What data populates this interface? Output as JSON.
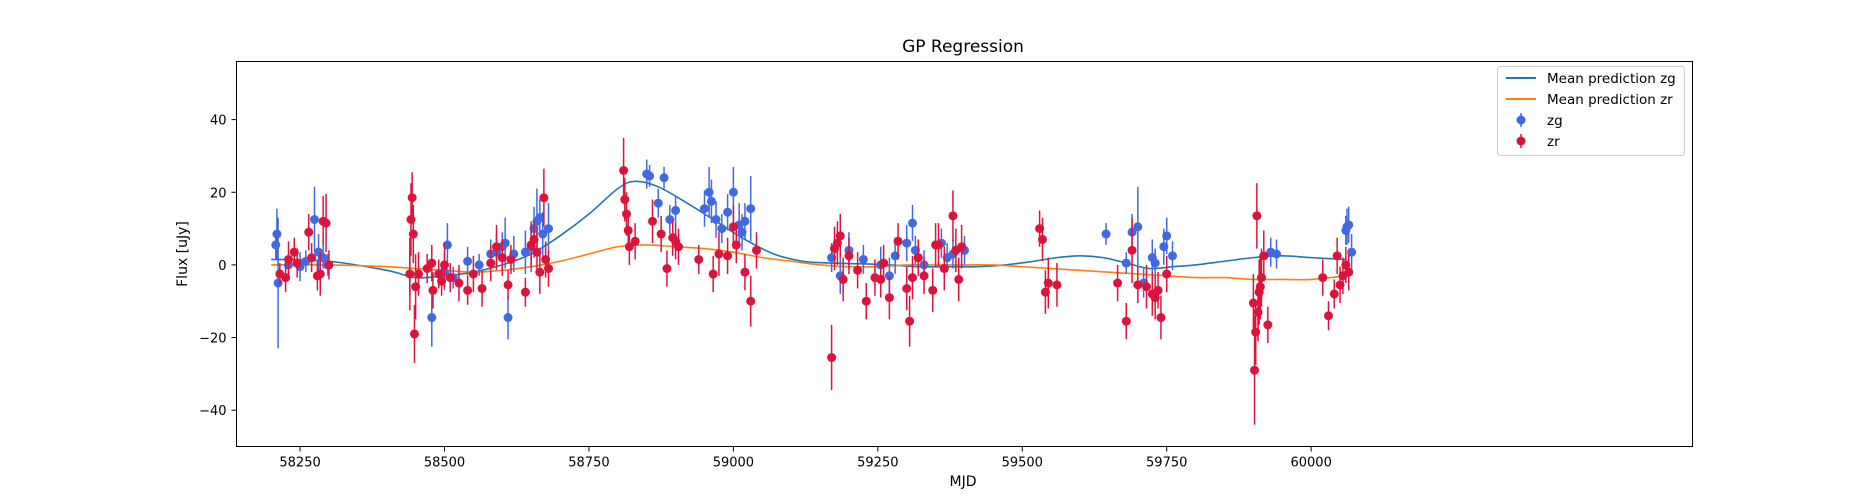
{
  "chart_data": {
    "type": "scatter",
    "title": "GP Regression",
    "xlabel": "MJD",
    "ylabel": "Flux [uJy]",
    "xlim": [
      58140,
      60660
    ],
    "ylim": [
      -50,
      56
    ],
    "xticks": [
      58250,
      58500,
      58750,
      59000,
      59250,
      59500,
      59750,
      60000
    ],
    "yticks": [
      -40,
      -20,
      0,
      20,
      40
    ],
    "grid": false,
    "legend_position": "top-right",
    "colors": {
      "zg_line": "#1f77b4",
      "zr_line": "#ff7f0e",
      "zg_points": "#4169e1",
      "zr_points": "#dc143c"
    },
    "lines": [
      {
        "name": "Mean prediction zg",
        "color": "#1f77b4",
        "x": [
          58200,
          58300,
          58400,
          58450,
          58500,
          58550,
          58600,
          58650,
          58700,
          58750,
          58800,
          58830,
          58870,
          58920,
          58970,
          59020,
          59070,
          59120,
          59170,
          59220,
          59270,
          59320,
          59370,
          59420,
          59470,
          59520,
          59560,
          59600,
          59640,
          59680,
          59720,
          59760,
          59800,
          59850,
          59900,
          59950,
          60000,
          60060
        ],
        "y": [
          1.5,
          1,
          -1.5,
          -3.5,
          -3,
          -2,
          0,
          3,
          8,
          14,
          21,
          23,
          21.5,
          17,
          12,
          7,
          3,
          1,
          0.5,
          0.3,
          0,
          -0.5,
          -0.5,
          -0.5,
          0,
          1,
          2,
          2.5,
          2,
          0.5,
          -1,
          -0.5,
          0,
          1,
          2,
          2.5,
          2,
          1.5
        ]
      },
      {
        "name": "Mean prediction zr",
        "color": "#ff7f0e",
        "x": [
          58200,
          58300,
          58400,
          58450,
          58500,
          58550,
          58600,
          58650,
          58700,
          58750,
          58800,
          58850,
          58900,
          58950,
          59000,
          59050,
          59100,
          59150,
          59200,
          59250,
          59300,
          59350,
          59400,
          59450,
          59500,
          59550,
          59600,
          59650,
          59700,
          59750,
          59800,
          59850,
          59900,
          59950,
          60000,
          60060
        ],
        "y": [
          0,
          0,
          -0.5,
          -1,
          -1.5,
          -2,
          -1.5,
          -0.5,
          1,
          3,
          5,
          5.5,
          5,
          4.5,
          3.5,
          2,
          1,
          0,
          -0.5,
          -0.5,
          0,
          0,
          0,
          0,
          -0.5,
          -1,
          -1.5,
          -2,
          -2.5,
          -3,
          -3.5,
          -3.5,
          -4,
          -4,
          -4,
          -3
        ]
      }
    ],
    "series": [
      {
        "name": "zg",
        "color": "#4169e1",
        "x": [
          58208,
          58210,
          58212,
          58230,
          58250,
          58260,
          58275,
          58282,
          58290,
          58298,
          58440,
          58478,
          58500,
          58505,
          58515,
          58540,
          58560,
          58580,
          58590,
          58600,
          58605,
          58610,
          58620,
          58640,
          58650,
          58655,
          58660,
          58665,
          58670,
          58680,
          58850,
          58855,
          58870,
          58880,
          58890,
          58900,
          58950,
          58958,
          58962,
          58970,
          58980,
          58990,
          59000,
          59010,
          59015,
          59020,
          59030,
          59170,
          59185,
          59200,
          59225,
          59255,
          59270,
          59280,
          59300,
          59310,
          59315,
          59320,
          59330,
          59360,
          59370,
          59380,
          59400,
          59645,
          59680,
          59690,
          59700,
          59710,
          59725,
          59730,
          59745,
          59750,
          59760,
          59930,
          59940,
          60060,
          60062,
          60065,
          60070
        ],
        "y": [
          5.5,
          8.5,
          -5,
          0,
          -0.5,
          1,
          12.5,
          3.5,
          2,
          0,
          -2.5,
          -14.5,
          -2,
          5.5,
          -3.5,
          1,
          0,
          3,
          3.5,
          5,
          6,
          -14.5,
          3,
          3.5,
          5,
          10,
          12,
          13,
          8.5,
          10,
          25,
          24.5,
          17,
          24,
          12.5,
          15,
          15.5,
          20,
          17.5,
          12.5,
          10,
          14.5,
          20,
          11,
          9,
          12,
          15.5,
          2,
          -3,
          4,
          1.5,
          0,
          -3,
          2.5,
          6,
          11.5,
          4,
          2,
          0,
          6,
          2,
          3,
          4,
          8.5,
          0.5,
          9,
          10.5,
          -5,
          2,
          0.5,
          5,
          8,
          2.5,
          3.5,
          3,
          9.5,
          10.5,
          11,
          3.5
        ],
        "err": [
          4,
          7,
          18,
          3,
          4,
          3,
          9,
          5,
          3,
          3,
          6,
          8,
          5,
          6,
          3,
          4,
          3,
          4,
          5,
          4,
          7,
          6,
          5,
          6,
          7,
          6,
          9,
          5,
          6,
          7,
          4,
          3,
          4,
          3,
          4,
          4,
          5,
          7,
          6,
          5,
          4,
          5,
          7,
          6,
          5,
          5,
          9,
          4,
          5,
          5,
          4,
          5,
          5,
          5,
          5,
          5,
          4,
          5,
          4,
          4,
          4,
          4,
          4,
          3,
          3,
          5,
          11,
          4,
          5,
          4,
          5,
          5,
          4,
          4,
          4,
          4,
          5,
          5,
          5
        ]
      },
      {
        "name": "zr",
        "color": "#dc143c",
        "x": [
          58215,
          58225,
          58230,
          58240,
          58245,
          58265,
          58270,
          58280,
          58285,
          58290,
          58295,
          58300,
          58440,
          58442,
          58444,
          58446,
          58448,
          58450,
          58455,
          58470,
          58478,
          58480,
          58490,
          58495,
          58500,
          58510,
          58525,
          58540,
          58550,
          58565,
          58580,
          58590,
          58600,
          58610,
          58615,
          58640,
          58650,
          58655,
          58660,
          58665,
          58672,
          58675,
          58680,
          58810,
          58812,
          58815,
          58818,
          58820,
          58830,
          58860,
          58875,
          58885,
          58895,
          58900,
          58905,
          58940,
          58965,
          58975,
          58990,
          59000,
          59005,
          59020,
          59030,
          59040,
          59170,
          59175,
          59180,
          59185,
          59190,
          59200,
          59215,
          59230,
          59245,
          59255,
          59260,
          59270,
          59285,
          59300,
          59305,
          59310,
          59320,
          59330,
          59345,
          59350,
          59355,
          59365,
          59380,
          59385,
          59390,
          59395,
          59530,
          59535,
          59540,
          59545,
          59560,
          59665,
          59680,
          59690,
          59700,
          59715,
          59725,
          59730,
          59735,
          59740,
          59750,
          59900,
          59902,
          59904,
          59906,
          59908,
          59910,
          59912,
          59914,
          59918,
          59925,
          60020,
          60030,
          60040,
          60045,
          60050,
          60055,
          60060,
          60065
        ],
        "y": [
          -2.5,
          -3.5,
          1.5,
          3.5,
          0.5,
          9,
          2,
          -3,
          -2.5,
          12,
          11.5,
          0,
          -2.5,
          12.5,
          18.5,
          8.5,
          -19,
          -6,
          -2.5,
          -1,
          0.5,
          -7,
          -2.5,
          -4.5,
          0,
          -3.5,
          -5,
          -7,
          -2.5,
          -6.5,
          0.5,
          5,
          2,
          -5.5,
          1.5,
          -7.5,
          5.5,
          7,
          3.5,
          -2,
          18.5,
          1.5,
          -1,
          26,
          18,
          14,
          9.5,
          5,
          6.5,
          12,
          8.5,
          -1,
          7.5,
          6.5,
          5,
          1.5,
          -2.5,
          3,
          2.5,
          10.5,
          5.5,
          -2,
          -10,
          4,
          -25.5,
          4.5,
          6,
          8,
          -4,
          2.5,
          -1.5,
          -10,
          -3.5,
          -4,
          0.5,
          -9,
          6.5,
          -6.5,
          -15.5,
          -3.5,
          2,
          -3,
          -7,
          5.5,
          5.5,
          -1,
          13.5,
          4,
          -4,
          5,
          10,
          7,
          -7.5,
          -5,
          -5.5,
          -5,
          -15.5,
          4,
          -5.5,
          -6,
          -8,
          -9,
          -7,
          -14.5,
          -2.5,
          -10.5,
          -29,
          -18.5,
          13.5,
          -13,
          -7.5,
          -6,
          -3.5,
          2.5,
          -16.5,
          -3.5,
          -14,
          -8,
          2.5,
          -5.5,
          -3,
          0,
          -2
        ],
        "err": [
          3,
          4,
          5,
          4,
          4,
          5,
          4,
          4,
          6,
          7,
          8,
          4,
          10,
          10,
          7,
          8,
          8,
          9,
          6,
          4,
          5,
          5,
          4,
          4,
          6,
          4,
          5,
          4,
          5,
          5,
          5,
          6,
          5,
          4,
          4,
          4,
          6,
          5,
          6,
          6,
          8,
          5,
          5,
          9,
          6,
          6,
          5,
          5,
          5,
          6,
          5,
          5,
          5,
          5,
          5,
          4,
          5,
          6,
          5,
          6,
          5,
          5,
          7,
          5,
          9,
          6,
          6,
          6,
          6,
          5,
          5,
          5,
          5,
          5,
          5,
          6,
          5,
          6,
          7,
          6,
          5,
          5,
          6,
          6,
          6,
          6,
          7,
          6,
          6,
          6,
          5,
          6,
          6,
          7,
          6,
          5,
          5,
          9,
          5,
          6,
          6,
          6,
          5,
          6,
          5,
          8,
          15,
          9,
          9,
          8,
          9,
          9,
          8,
          7,
          5,
          5,
          4,
          4,
          5,
          5,
          5,
          5,
          5
        ]
      }
    ]
  }
}
